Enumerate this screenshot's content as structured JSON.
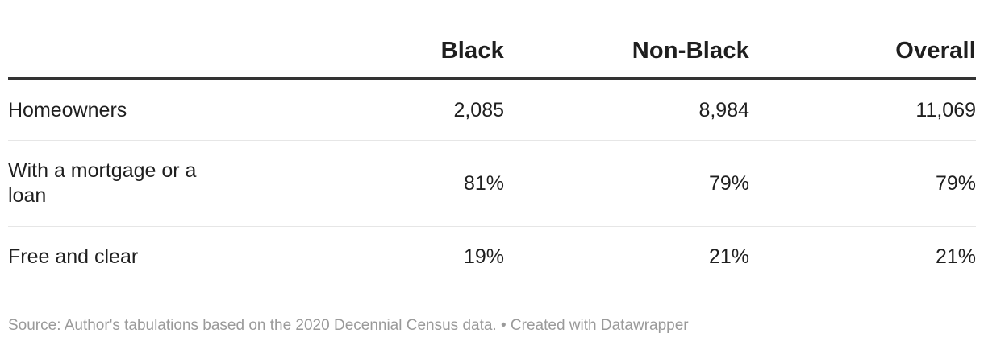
{
  "chart_data": {
    "type": "table",
    "columns": [
      "",
      "Black",
      "Non-Black",
      "Overall"
    ],
    "rows": [
      {
        "label": "Homeowners",
        "values": [
          "2,085",
          "8,984",
          "11,069"
        ]
      },
      {
        "label": "With a mortgage or a loan",
        "values": [
          "81%",
          "79%",
          "79%"
        ]
      },
      {
        "label": "Free and clear",
        "values": [
          "19%",
          "21%",
          "21%"
        ]
      }
    ],
    "source": "Source: Author's tabulations based on the 2020 Decennial Census data. • Created with Datawrapper"
  },
  "colors": {
    "text": "#1f1f1f",
    "header_rule": "#333333",
    "row_divider": "#e6e6e6",
    "source_text": "#9a9a9a"
  }
}
